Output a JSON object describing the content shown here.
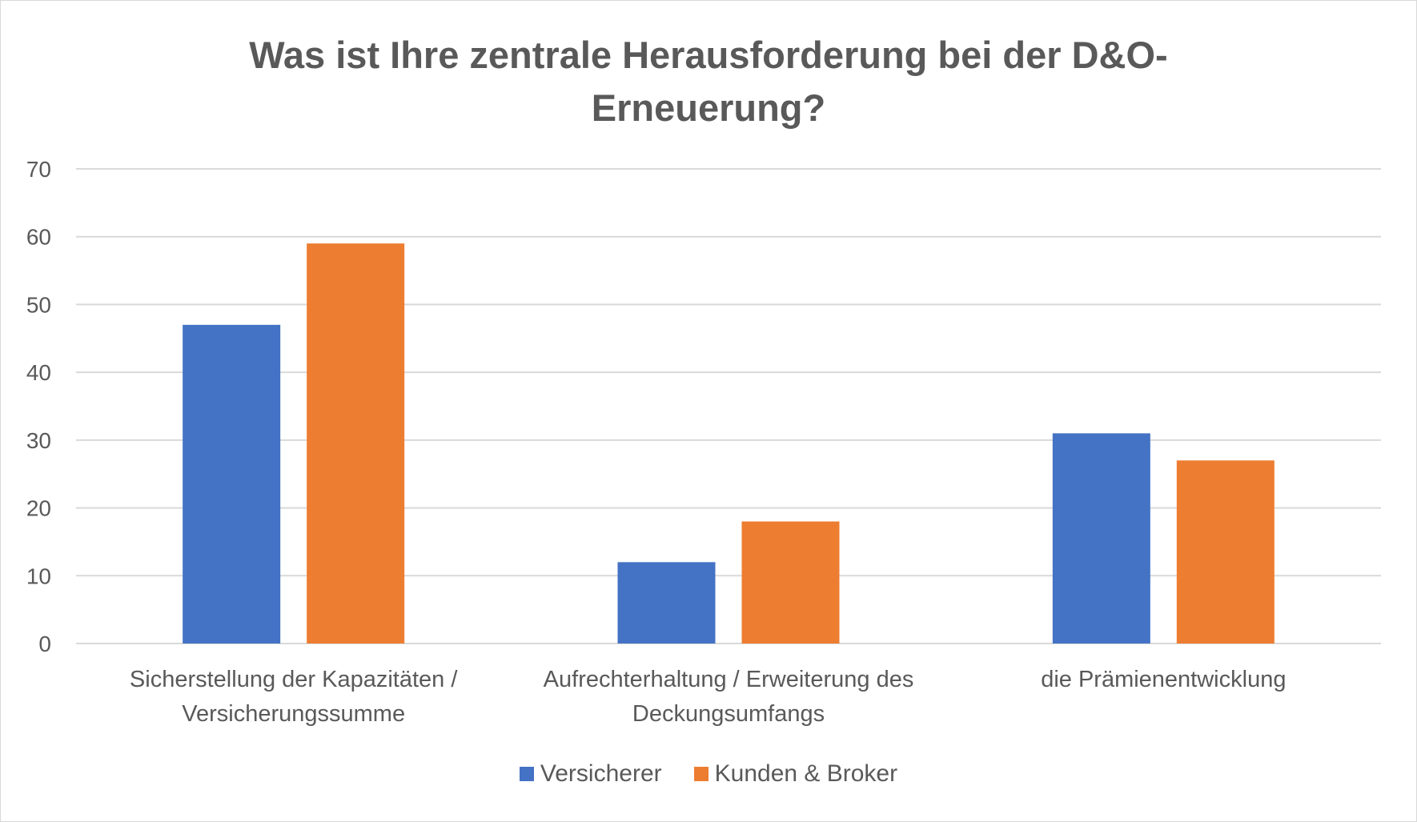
{
  "chart_data": {
    "type": "bar",
    "title_lines": [
      "Was ist Ihre zentrale Herausforderung bei der D&O-",
      "Erneuerung?"
    ],
    "categories": [
      [
        "Sicherstellung der Kapazitäten /",
        "Versicherungssumme"
      ],
      [
        "Aufrechterhaltung / Erweiterung des",
        "Deckungsumfangs"
      ],
      [
        "die Prämienentwicklung"
      ]
    ],
    "series": [
      {
        "name": "Versicherer",
        "values": [
          47,
          12,
          31
        ],
        "color": "#4472C4"
      },
      {
        "name": "Kunden & Broker",
        "values": [
          59,
          18,
          27
        ],
        "color": "#ED7D31"
      }
    ],
    "ylim": [
      0,
      70
    ],
    "yticks": [
      "0",
      "10",
      "20",
      "30",
      "40",
      "50",
      "60",
      "70"
    ],
    "grid": true,
    "legend_position": "bottom"
  }
}
